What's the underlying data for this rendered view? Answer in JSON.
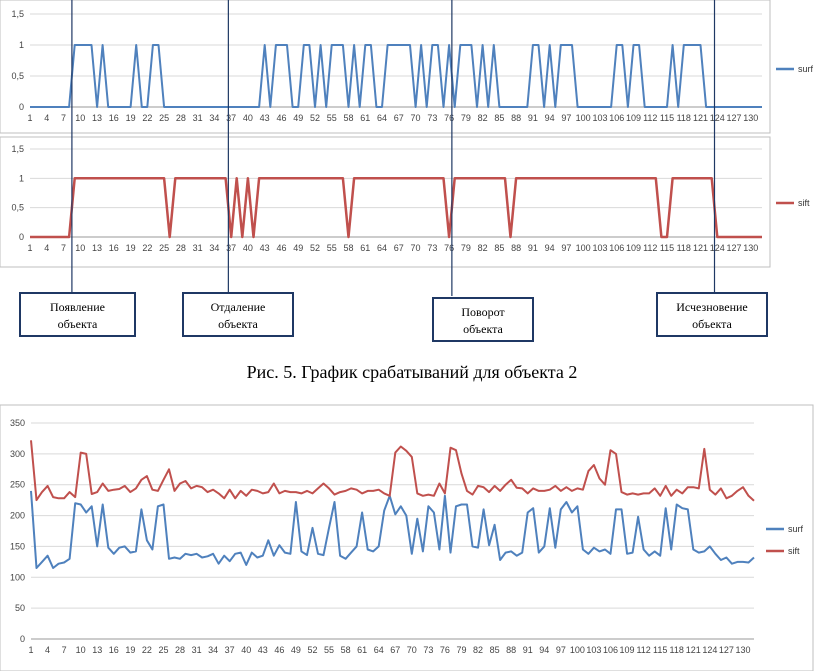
{
  "caption": "Рис. 5. График срабатываний для объекта 2",
  "colors": {
    "surf": "#4f81bd",
    "sift": "#c0504d",
    "grid": "#d9d9d9",
    "annotation_line": "#1f3864"
  },
  "annotations": [
    {
      "label_line1": "Появление",
      "label_line2": "объекта",
      "x": 8.5
    },
    {
      "label_line1": "Отдаление",
      "label_line2": "объекта",
      "x": 36.5
    },
    {
      "label_line1": "Поворот",
      "label_line2": "объекта",
      "x": 76.5
    },
    {
      "label_line1": "Исчезновение",
      "label_line2": "объекта",
      "x": 123.5
    }
  ],
  "chart_data": [
    {
      "type": "line",
      "x": [
        1,
        2,
        3,
        4,
        5,
        6,
        7,
        8,
        9,
        10,
        11,
        12,
        13,
        14,
        15,
        16,
        17,
        18,
        19,
        20,
        21,
        22,
        23,
        24,
        25,
        26,
        27,
        28,
        29,
        30,
        31,
        32,
        33,
        34,
        35,
        36,
        37,
        38,
        39,
        40,
        41,
        42,
        43,
        44,
        45,
        46,
        47,
        48,
        49,
        50,
        51,
        52,
        53,
        54,
        55,
        56,
        57,
        58,
        59,
        60,
        61,
        62,
        63,
        64,
        65,
        66,
        67,
        68,
        69,
        70,
        71,
        72,
        73,
        74,
        75,
        76,
        77,
        78,
        79,
        80,
        81,
        82,
        83,
        84,
        85,
        86,
        87,
        88,
        89,
        90,
        91,
        92,
        93,
        94,
        95,
        96,
        97,
        98,
        99,
        100,
        101,
        102,
        103,
        104,
        105,
        106,
        107,
        108,
        109,
        110,
        111,
        112,
        113,
        114,
        115,
        116,
        117,
        118,
        119,
        120,
        121,
        122,
        123,
        124,
        125,
        126,
        127,
        128,
        129,
        130,
        131,
        132
      ],
      "x_tick_labels": [
        "1",
        "4",
        "7",
        "10",
        "13",
        "16",
        "19",
        "22",
        "25",
        "28",
        "31",
        "34",
        "37",
        "40",
        "43",
        "46",
        "49",
        "52",
        "55",
        "58",
        "61",
        "64",
        "67",
        "70",
        "73",
        "76",
        "79",
        "82",
        "85",
        "88",
        "91",
        "94",
        "97",
        "100",
        "103",
        "106",
        "109",
        "112",
        "115",
        "118",
        "121",
        "124",
        "127",
        "130"
      ],
      "y_tick_labels": [
        "0",
        "0,5",
        "1",
        "1,5"
      ],
      "ylim": [
        0,
        1.5
      ],
      "series": [
        {
          "name": "surf",
          "color": "#4f81bd",
          "values": [
            0,
            0,
            0,
            0,
            0,
            0,
            0,
            0,
            1,
            1,
            1,
            1,
            0,
            1,
            0,
            0,
            0,
            0,
            0,
            1,
            0,
            0,
            1,
            1,
            0,
            0,
            0,
            0,
            0,
            0,
            0,
            0,
            0,
            0,
            0,
            0,
            0,
            0,
            0,
            0,
            0,
            0,
            1,
            0,
            1,
            1,
            1,
            0,
            0,
            1,
            1,
            0,
            1,
            0,
            1,
            1,
            1,
            0,
            1,
            0,
            1,
            1,
            0,
            0,
            1,
            1,
            1,
            1,
            1,
            0,
            1,
            0,
            1,
            1,
            0,
            1,
            0,
            1,
            1,
            1,
            0,
            1,
            0,
            1,
            0,
            0,
            0,
            0,
            0,
            0,
            1,
            1,
            0,
            1,
            0,
            1,
            1,
            1,
            0,
            0,
            0,
            0,
            0,
            0,
            0,
            1,
            1,
            0,
            1,
            1,
            0,
            0,
            0,
            0,
            0,
            1,
            0,
            1,
            1,
            1,
            1,
            0,
            0,
            0,
            0,
            0,
            0,
            0,
            0,
            0,
            0,
            0
          ]
        }
      ]
    },
    {
      "type": "line",
      "x": [
        1,
        2,
        3,
        4,
        5,
        6,
        7,
        8,
        9,
        10,
        11,
        12,
        13,
        14,
        15,
        16,
        17,
        18,
        19,
        20,
        21,
        22,
        23,
        24,
        25,
        26,
        27,
        28,
        29,
        30,
        31,
        32,
        33,
        34,
        35,
        36,
        37,
        38,
        39,
        40,
        41,
        42,
        43,
        44,
        45,
        46,
        47,
        48,
        49,
        50,
        51,
        52,
        53,
        54,
        55,
        56,
        57,
        58,
        59,
        60,
        61,
        62,
        63,
        64,
        65,
        66,
        67,
        68,
        69,
        70,
        71,
        72,
        73,
        74,
        75,
        76,
        77,
        78,
        79,
        80,
        81,
        82,
        83,
        84,
        85,
        86,
        87,
        88,
        89,
        90,
        91,
        92,
        93,
        94,
        95,
        96,
        97,
        98,
        99,
        100,
        101,
        102,
        103,
        104,
        105,
        106,
        107,
        108,
        109,
        110,
        111,
        112,
        113,
        114,
        115,
        116,
        117,
        118,
        119,
        120,
        121,
        122,
        123,
        124,
        125,
        126,
        127,
        128,
        129,
        130,
        131,
        132
      ],
      "x_tick_labels": [
        "1",
        "4",
        "7",
        "10",
        "13",
        "16",
        "19",
        "22",
        "25",
        "28",
        "31",
        "34",
        "37",
        "40",
        "43",
        "46",
        "49",
        "52",
        "55",
        "58",
        "61",
        "64",
        "67",
        "70",
        "73",
        "76",
        "79",
        "82",
        "85",
        "88",
        "91",
        "94",
        "97",
        "100",
        "103",
        "106",
        "109",
        "112",
        "115",
        "118",
        "121",
        "124",
        "127",
        "130"
      ],
      "y_tick_labels": [
        "0",
        "0,5",
        "1",
        "1,5"
      ],
      "ylim": [
        0,
        1.5
      ],
      "series": [
        {
          "name": "sift",
          "color": "#c0504d",
          "values": [
            0,
            0,
            0,
            0,
            0,
            0,
            0,
            0,
            1,
            1,
            1,
            1,
            1,
            1,
            1,
            1,
            1,
            1,
            1,
            1,
            1,
            1,
            1,
            1,
            1,
            0,
            1,
            1,
            1,
            1,
            1,
            1,
            1,
            1,
            1,
            1,
            0,
            1,
            0,
            1,
            0,
            1,
            1,
            1,
            1,
            1,
            1,
            1,
            1,
            1,
            1,
            1,
            1,
            1,
            1,
            1,
            1,
            0,
            1,
            1,
            1,
            1,
            1,
            1,
            1,
            1,
            1,
            1,
            1,
            1,
            1,
            1,
            1,
            1,
            1,
            0,
            1,
            1,
            1,
            1,
            1,
            1,
            1,
            1,
            1,
            1,
            0,
            1,
            1,
            1,
            1,
            1,
            1,
            1,
            1,
            1,
            1,
            1,
            1,
            1,
            1,
            1,
            1,
            1,
            1,
            1,
            1,
            1,
            1,
            1,
            1,
            1,
            1,
            0,
            0,
            1,
            1,
            1,
            1,
            1,
            1,
            1,
            1,
            0,
            0,
            0,
            0,
            0,
            0,
            0,
            0,
            0
          ]
        }
      ]
    },
    {
      "type": "line",
      "x": [
        1,
        2,
        3,
        4,
        5,
        6,
        7,
        8,
        9,
        10,
        11,
        12,
        13,
        14,
        15,
        16,
        17,
        18,
        19,
        20,
        21,
        22,
        23,
        24,
        25,
        26,
        27,
        28,
        29,
        30,
        31,
        32,
        33,
        34,
        35,
        36,
        37,
        38,
        39,
        40,
        41,
        42,
        43,
        44,
        45,
        46,
        47,
        48,
        49,
        50,
        51,
        52,
        53,
        54,
        55,
        56,
        57,
        58,
        59,
        60,
        61,
        62,
        63,
        64,
        65,
        66,
        67,
        68,
        69,
        70,
        71,
        72,
        73,
        74,
        75,
        76,
        77,
        78,
        79,
        80,
        81,
        82,
        83,
        84,
        85,
        86,
        87,
        88,
        89,
        90,
        91,
        92,
        93,
        94,
        95,
        96,
        97,
        98,
        99,
        100,
        101,
        102,
        103,
        104,
        105,
        106,
        107,
        108,
        109,
        110,
        111,
        112,
        113,
        114,
        115,
        116,
        117,
        118,
        119,
        120,
        121,
        122,
        123,
        124,
        125,
        126,
        127,
        128,
        129,
        130,
        131,
        132
      ],
      "x_tick_labels": [
        "1",
        "4",
        "7",
        "10",
        "13",
        "16",
        "19",
        "22",
        "25",
        "28",
        "31",
        "34",
        "37",
        "40",
        "43",
        "46",
        "49",
        "52",
        "55",
        "58",
        "61",
        "64",
        "67",
        "70",
        "73",
        "76",
        "79",
        "82",
        "85",
        "88",
        "91",
        "94",
        "97",
        "100",
        "103",
        "106",
        "109",
        "112",
        "115",
        "118",
        "121",
        "124",
        "127",
        "130"
      ],
      "y_tick_labels": [
        "0",
        "50",
        "100",
        "150",
        "200",
        "250",
        "300",
        "350"
      ],
      "ylim": [
        0,
        350
      ],
      "series": [
        {
          "name": "surf",
          "color": "#4f81bd",
          "values": [
            240,
            115,
            125,
            135,
            115,
            122,
            124,
            130,
            220,
            218,
            205,
            215,
            150,
            218,
            148,
            138,
            148,
            150,
            140,
            142,
            210,
            160,
            145,
            215,
            218,
            130,
            132,
            130,
            138,
            136,
            138,
            132,
            134,
            138,
            122,
            135,
            126,
            138,
            140,
            120,
            140,
            132,
            135,
            160,
            135,
            152,
            140,
            138,
            222,
            142,
            136,
            180,
            138,
            136,
            180,
            222,
            135,
            130,
            140,
            150,
            205,
            145,
            142,
            150,
            208,
            232,
            202,
            215,
            200,
            138,
            195,
            142,
            215,
            205,
            145,
            232,
            140,
            215,
            218,
            218,
            150,
            148,
            210,
            152,
            185,
            128,
            140,
            142,
            135,
            140,
            205,
            212,
            140,
            150,
            212,
            148,
            210,
            222,
            205,
            215,
            145,
            138,
            148,
            142,
            145,
            138,
            210,
            210,
            138,
            140,
            198,
            145,
            135,
            142,
            135,
            212,
            145,
            218,
            212,
            210,
            145,
            140,
            142,
            150,
            138,
            128,
            132,
            122,
            125,
            125,
            124,
            132
          ]
        },
        {
          "name": "sift",
          "color": "#c0504d",
          "values": [
            322,
            225,
            238,
            248,
            230,
            228,
            228,
            238,
            230,
            302,
            300,
            235,
            238,
            252,
            240,
            242,
            243,
            248,
            238,
            244,
            258,
            264,
            242,
            240,
            258,
            275,
            240,
            252,
            256,
            244,
            248,
            246,
            238,
            242,
            236,
            228,
            242,
            228,
            240,
            232,
            242,
            240,
            236,
            238,
            252,
            236,
            240,
            238,
            238,
            236,
            240,
            236,
            244,
            252,
            244,
            234,
            238,
            240,
            244,
            242,
            236,
            240,
            240,
            242,
            236,
            232,
            302,
            312,
            305,
            295,
            236,
            232,
            234,
            232,
            252,
            236,
            310,
            306,
            268,
            240,
            234,
            248,
            246,
            238,
            248,
            240,
            250,
            258,
            245,
            244,
            236,
            244,
            240,
            240,
            242,
            248,
            240,
            246,
            240,
            244,
            242,
            272,
            282,
            260,
            250,
            306,
            300,
            238,
            234,
            236,
            234,
            236,
            236,
            244,
            232,
            248,
            232,
            242,
            236,
            246,
            246,
            244,
            308,
            242,
            234,
            244,
            228,
            232,
            240,
            246,
            232,
            224
          ]
        }
      ]
    }
  ]
}
